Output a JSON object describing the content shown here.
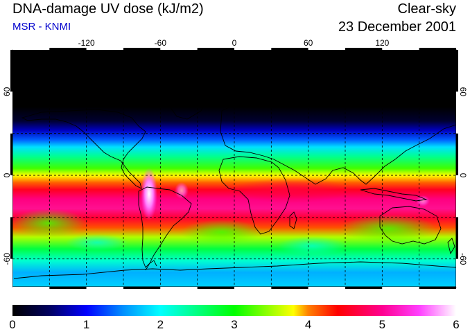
{
  "header": {
    "title": "DNA-damage UV dose (kJ/m2)",
    "source": "MSR - KNMI",
    "sky_condition": "Clear-sky",
    "date": "23 December 2001"
  },
  "map": {
    "lon_ticks": [
      "-120",
      "-60",
      "0",
      "60",
      "120"
    ],
    "lon_values": [
      -120,
      -60,
      0,
      60,
      120
    ],
    "lat_ticks": [
      "60",
      "0",
      "-60"
    ],
    "lat_values": [
      60,
      0,
      -60
    ],
    "lat_range": [
      -80,
      90
    ],
    "lon_range": [
      -180,
      180
    ],
    "gridline_lats": [
      60,
      30,
      0,
      -30,
      -60
    ],
    "gridline_lons": [
      -150,
      -120,
      -90,
      -60,
      -30,
      0,
      30,
      60,
      90,
      120,
      150
    ]
  },
  "colorbar": {
    "min": 0,
    "max": 6,
    "tick_labels": [
      "0",
      "1",
      "2",
      "3",
      "4",
      "5",
      "6"
    ],
    "tick_values": [
      0,
      1,
      2,
      3,
      4,
      5,
      6
    ],
    "stops": [
      {
        "value": 0.0,
        "color": "#000000"
      },
      {
        "value": 0.5,
        "color": "#000060"
      },
      {
        "value": 1.0,
        "color": "#0000ff"
      },
      {
        "value": 1.5,
        "color": "#0090ff"
      },
      {
        "value": 2.0,
        "color": "#00ffff"
      },
      {
        "value": 2.5,
        "color": "#00ff80"
      },
      {
        "value": 3.0,
        "color": "#00ff00"
      },
      {
        "value": 3.5,
        "color": "#a0ff00"
      },
      {
        "value": 3.8,
        "color": "#ffff00"
      },
      {
        "value": 4.0,
        "color": "#ff8000"
      },
      {
        "value": 4.4,
        "color": "#ff0000"
      },
      {
        "value": 5.0,
        "color": "#ff0090"
      },
      {
        "value": 5.5,
        "color": "#ff40ff"
      },
      {
        "value": 6.0,
        "color": "#ffffff"
      }
    ]
  }
}
